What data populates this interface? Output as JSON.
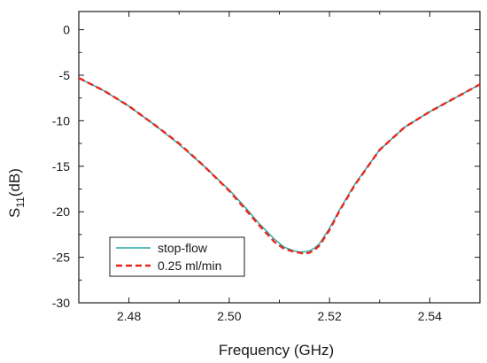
{
  "chart_data": {
    "type": "line",
    "xlabel": "Frequency (GHz)",
    "ylabel": "S11(dB)",
    "ylabel_main": "S",
    "ylabel_sub": "11",
    "ylabel_rest": "(dB)",
    "xlim": [
      2.47,
      2.55
    ],
    "ylim": [
      -30,
      2
    ],
    "xticks": [
      2.48,
      2.5,
      2.52,
      2.54
    ],
    "xtick_labels": [
      "2.48",
      "2.50",
      "2.52",
      "2.54"
    ],
    "yticks": [
      0,
      -5,
      -10,
      -15,
      -20,
      -25,
      -30
    ],
    "ytick_labels": [
      "0",
      "-5",
      "-10",
      "-15",
      "-20",
      "-25",
      "-30"
    ],
    "grid": false,
    "legend_position": "bottom-left",
    "series": [
      {
        "name": "stop-flow",
        "color": "#2aa6a6",
        "dash": "solid",
        "x": [
          2.47,
          2.475,
          2.48,
          2.485,
          2.49,
          2.495,
          2.5,
          2.503,
          2.506,
          2.509,
          2.511,
          2.513,
          2.514,
          2.515,
          2.516,
          2.517,
          2.518,
          2.52,
          2.522,
          2.525,
          2.53,
          2.535,
          2.54,
          2.545,
          2.55
        ],
        "y": [
          -5.3,
          -6.7,
          -8.4,
          -10.4,
          -12.6,
          -15.0,
          -17.6,
          -19.4,
          -21.3,
          -23.0,
          -23.9,
          -24.3,
          -24.4,
          -24.4,
          -24.3,
          -24.0,
          -23.5,
          -21.8,
          -19.8,
          -17.0,
          -13.2,
          -10.7,
          -9.0,
          -7.5,
          -6.0
        ]
      },
      {
        "name": "0.25 ml/min",
        "color": "#e8261c",
        "dash": "dashed",
        "x": [
          2.47,
          2.475,
          2.48,
          2.485,
          2.49,
          2.495,
          2.5,
          2.503,
          2.506,
          2.509,
          2.511,
          2.513,
          2.514,
          2.515,
          2.516,
          2.517,
          2.518,
          2.52,
          2.522,
          2.525,
          2.53,
          2.535,
          2.54,
          2.545,
          2.55
        ],
        "y": [
          -5.3,
          -6.7,
          -8.4,
          -10.4,
          -12.5,
          -15.0,
          -17.7,
          -19.6,
          -21.5,
          -23.3,
          -24.1,
          -24.4,
          -24.5,
          -24.6,
          -24.5,
          -24.2,
          -23.7,
          -22.0,
          -19.9,
          -17.1,
          -13.2,
          -10.7,
          -9.0,
          -7.5,
          -6.0
        ]
      }
    ]
  },
  "colors": {
    "axis": "#1a1a1a",
    "background": "#ffffff"
  }
}
